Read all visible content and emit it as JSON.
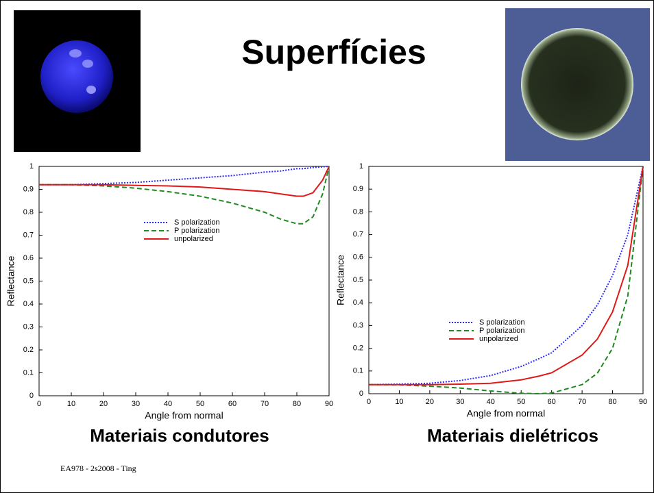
{
  "slide": {
    "title": "Superfícies",
    "footer": "EA978 - 2s2008 - Ting"
  },
  "chart_data": [
    {
      "type": "line",
      "caption": "Materiais condutores",
      "x_label": "Angle from normal",
      "y_label": "Reflectance",
      "x": [
        0,
        10,
        20,
        30,
        40,
        50,
        60,
        70,
        75,
        80,
        82,
        85,
        88,
        90
      ],
      "xlim": [
        0,
        90
      ],
      "xticks": [
        0,
        10,
        20,
        30,
        40,
        50,
        60,
        70,
        80,
        90
      ],
      "ylim": [
        0,
        1
      ],
      "yticks": [
        0,
        0.1,
        0.2,
        0.3,
        0.4,
        0.5,
        0.6,
        0.7,
        0.8,
        0.9,
        1
      ],
      "series": [
        {
          "name": "S polarization",
          "color": "#2a2aff",
          "dash": "dotted",
          "values": [
            0.92,
            0.92,
            0.925,
            0.93,
            0.94,
            0.95,
            0.96,
            0.975,
            0.98,
            0.99,
            0.99,
            0.995,
            0.998,
            1
          ]
        },
        {
          "name": "P polarization",
          "color": "#1f8a1f",
          "dash": "dashed",
          "values": [
            0.92,
            0.92,
            0.915,
            0.905,
            0.89,
            0.87,
            0.84,
            0.8,
            0.77,
            0.75,
            0.75,
            0.78,
            0.88,
            1
          ]
        },
        {
          "name": "unpolarized",
          "color": "#e01818",
          "dash": "solid",
          "values": [
            0.92,
            0.92,
            0.92,
            0.917,
            0.915,
            0.91,
            0.9,
            0.89,
            0.88,
            0.87,
            0.87,
            0.885,
            0.94,
            1
          ]
        }
      ]
    },
    {
      "type": "line",
      "caption": "Materiais dielétricos",
      "x_label": "Angle from normal",
      "y_label": "Reflectance",
      "x": [
        0,
        10,
        20,
        30,
        40,
        50,
        56,
        60,
        70,
        75,
        80,
        85,
        90
      ],
      "xlim": [
        0,
        90
      ],
      "xticks": [
        0,
        10,
        20,
        30,
        40,
        50,
        60,
        70,
        80,
        90
      ],
      "ylim": [
        0,
        1
      ],
      "yticks": [
        0,
        0.1,
        0.2,
        0.3,
        0.4,
        0.5,
        0.6,
        0.7,
        0.8,
        0.9,
        1
      ],
      "series": [
        {
          "name": "S polarization",
          "color": "#2a2aff",
          "dash": "dotted",
          "values": [
            0.04,
            0.042,
            0.046,
            0.058,
            0.08,
            0.12,
            0.155,
            0.18,
            0.3,
            0.39,
            0.52,
            0.7,
            1
          ]
        },
        {
          "name": "P polarization",
          "color": "#1f8a1f",
          "dash": "dashed",
          "values": [
            0.04,
            0.039,
            0.033,
            0.025,
            0.012,
            0.002,
            0,
            0.003,
            0.04,
            0.09,
            0.2,
            0.43,
            1
          ]
        },
        {
          "name": "unpolarized",
          "color": "#e01818",
          "dash": "solid",
          "values": [
            0.04,
            0.04,
            0.04,
            0.042,
            0.046,
            0.061,
            0.078,
            0.092,
            0.17,
            0.24,
            0.36,
            0.565,
            1
          ]
        }
      ]
    }
  ]
}
